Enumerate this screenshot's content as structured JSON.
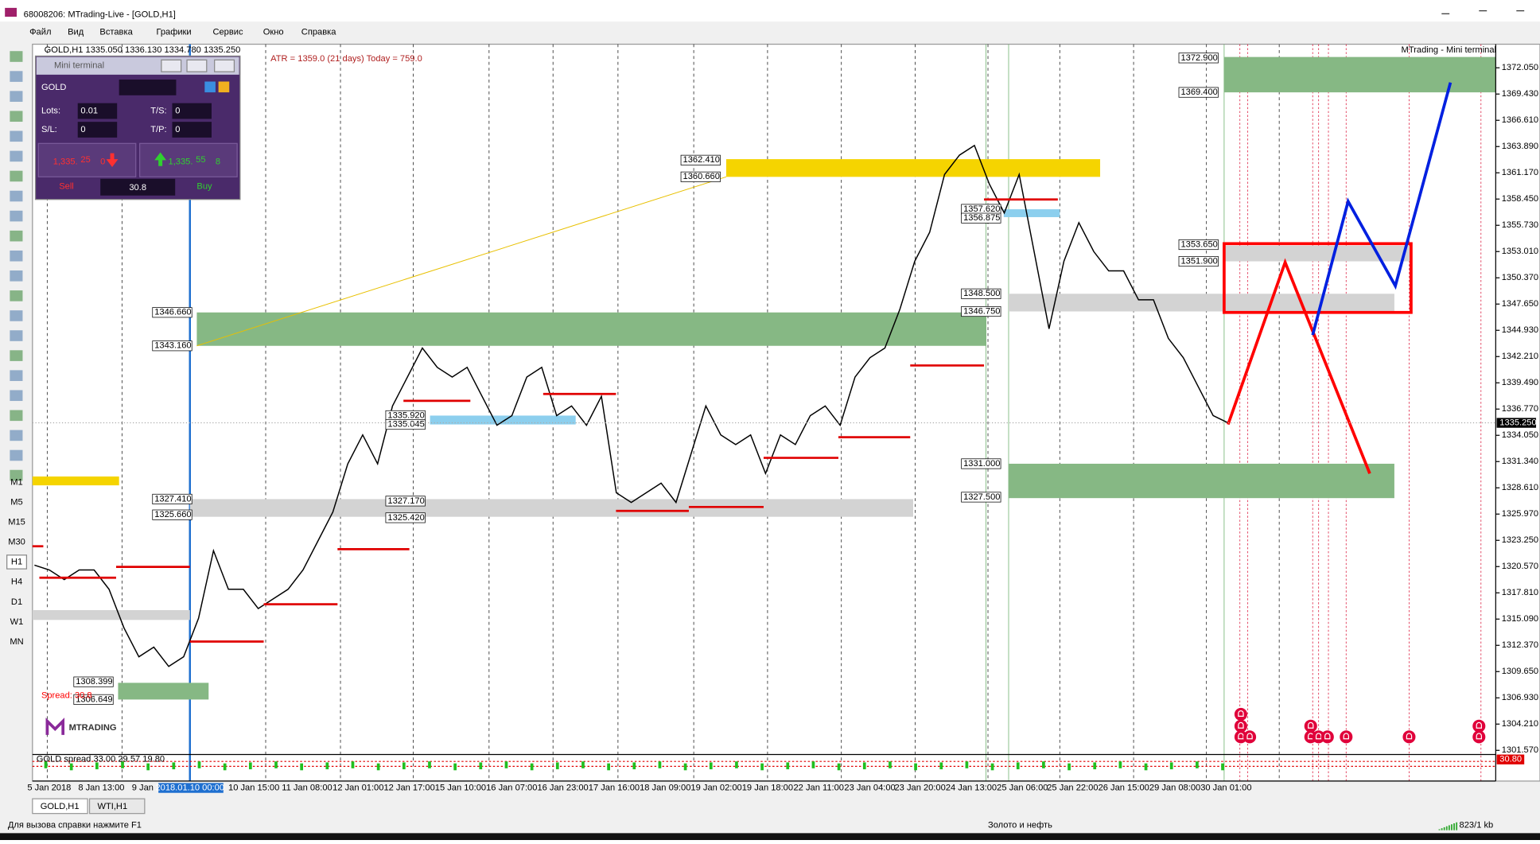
{
  "window": {
    "title": "68008206: MTrading-Live - [GOLD,H1]"
  },
  "menu": [
    "Файл",
    "Вид",
    "Вставка",
    "Графики",
    "Сервис",
    "Окно",
    "Справка"
  ],
  "timeframes": [
    "M1",
    "M5",
    "M15",
    "M30",
    "H1",
    "H4",
    "D1",
    "W1",
    "MN"
  ],
  "chart": {
    "header": "GOLD,H1  1335.050 1336.130 1334.780 1335.250",
    "atr": "ATR = 1359.0   (21 days)   Today = 759.0",
    "panel_label": "MTrading - Mini terminal",
    "spread": "Spread: 30.8",
    "logo": "MTRADING",
    "indicator": "GOLD spread 33.00 29.57 19.80",
    "indicator_value": "30.80",
    "current_price": "1335.250",
    "price_axis": [
      "1372.050",
      "1369.430",
      "1366.610",
      "1363.890",
      "1361.170",
      "1358.450",
      "1355.730",
      "1353.010",
      "1350.370",
      "1347.650",
      "1344.930",
      "1342.210",
      "1339.490",
      "1336.770",
      "1334.050",
      "1331.340",
      "1328.610",
      "1325.970",
      "1323.250",
      "1320.570",
      "1317.810",
      "1315.090",
      "1312.370",
      "1309.650",
      "1306.930",
      "1304.210",
      "1301.570"
    ],
    "time_axis": [
      "5 Jan 2018",
      "8 Jan 13:00",
      "9 Jan",
      "2018.01.10 00:00",
      "10 Jan 15:00",
      "11 Jan 08:00",
      "12 Jan 01:00",
      "12 Jan 17:00",
      "15 Jan 10:00",
      "16 Jan 07:00",
      "16 Jan 23:00",
      "17 Jan 16:00",
      "18 Jan 09:00",
      "19 Jan 02:00",
      "19 Jan 18:00",
      "22 Jan 11:00",
      "23 Jan 04:00",
      "23 Jan 20:00",
      "24 Jan 13:00",
      "25 Jan 06:00",
      "25 Jan 22:00",
      "26 Jan 15:00",
      "29 Jan 08:00",
      "30 Jan 01:00"
    ],
    "zone_labels": [
      "1372.900",
      "1369.400",
      "1362.410",
      "1360.660",
      "1357.620",
      "1356.875",
      "1353.650",
      "1351.900",
      "1348.500",
      "1346.750",
      "1346.660",
      "1343.160",
      "1335.920",
      "1335.045",
      "1327.410",
      "1325.660",
      "1327.170",
      "1325.420",
      "1331.000",
      "1327.500",
      "1308.399",
      "1306.649"
    ],
    "price_path": [
      1320.5,
      1320,
      1319,
      1320,
      1320,
      1318,
      1314,
      1311,
      1312,
      1310,
      1311,
      1315,
      1322,
      1318,
      1318,
      1316,
      1317,
      1318,
      1320,
      1323,
      1326,
      1331,
      1334,
      1331,
      1337,
      1340,
      1343,
      1341,
      1340,
      1341,
      1338,
      1335,
      1336,
      1340,
      1341,
      1336,
      1337,
      1335,
      1338,
      1328,
      1327,
      1328,
      1329,
      1327,
      1332,
      1337,
      1334,
      1333,
      1334,
      1330,
      1334,
      1333,
      1336,
      1337,
      1335,
      1340,
      1342,
      1343,
      1347,
      1352,
      1355,
      1361,
      1363,
      1364,
      1360,
      1357,
      1361,
      1353,
      1345,
      1352,
      1356,
      1353,
      1351,
      1351,
      1348,
      1348,
      1344,
      1342,
      1339,
      1336,
      1335.25
    ]
  },
  "mini_terminal": {
    "title": "Mini terminal",
    "symbol": "GOLD",
    "lots_label": "Lots:",
    "lots": "0.01",
    "ts_label": "T/S:",
    "ts": "0",
    "sl_label": "S/L:",
    "sl": "0",
    "tp_label": "T/P:",
    "tp": "0",
    "sell_price": {
      "prefix": "1,335.",
      "big": "25",
      "suffix": "0"
    },
    "buy_price": {
      "prefix": "1,335.",
      "big": "55",
      "suffix": "8"
    },
    "sell": "Sell",
    "buy": "Buy",
    "spread": "30.8"
  },
  "tabs": [
    "GOLD,H1",
    "WTI,H1"
  ],
  "status": {
    "help": "Для вызова справки нажмите F1",
    "profile": "Золото и нефть",
    "traffic": "823/1 kb"
  }
}
